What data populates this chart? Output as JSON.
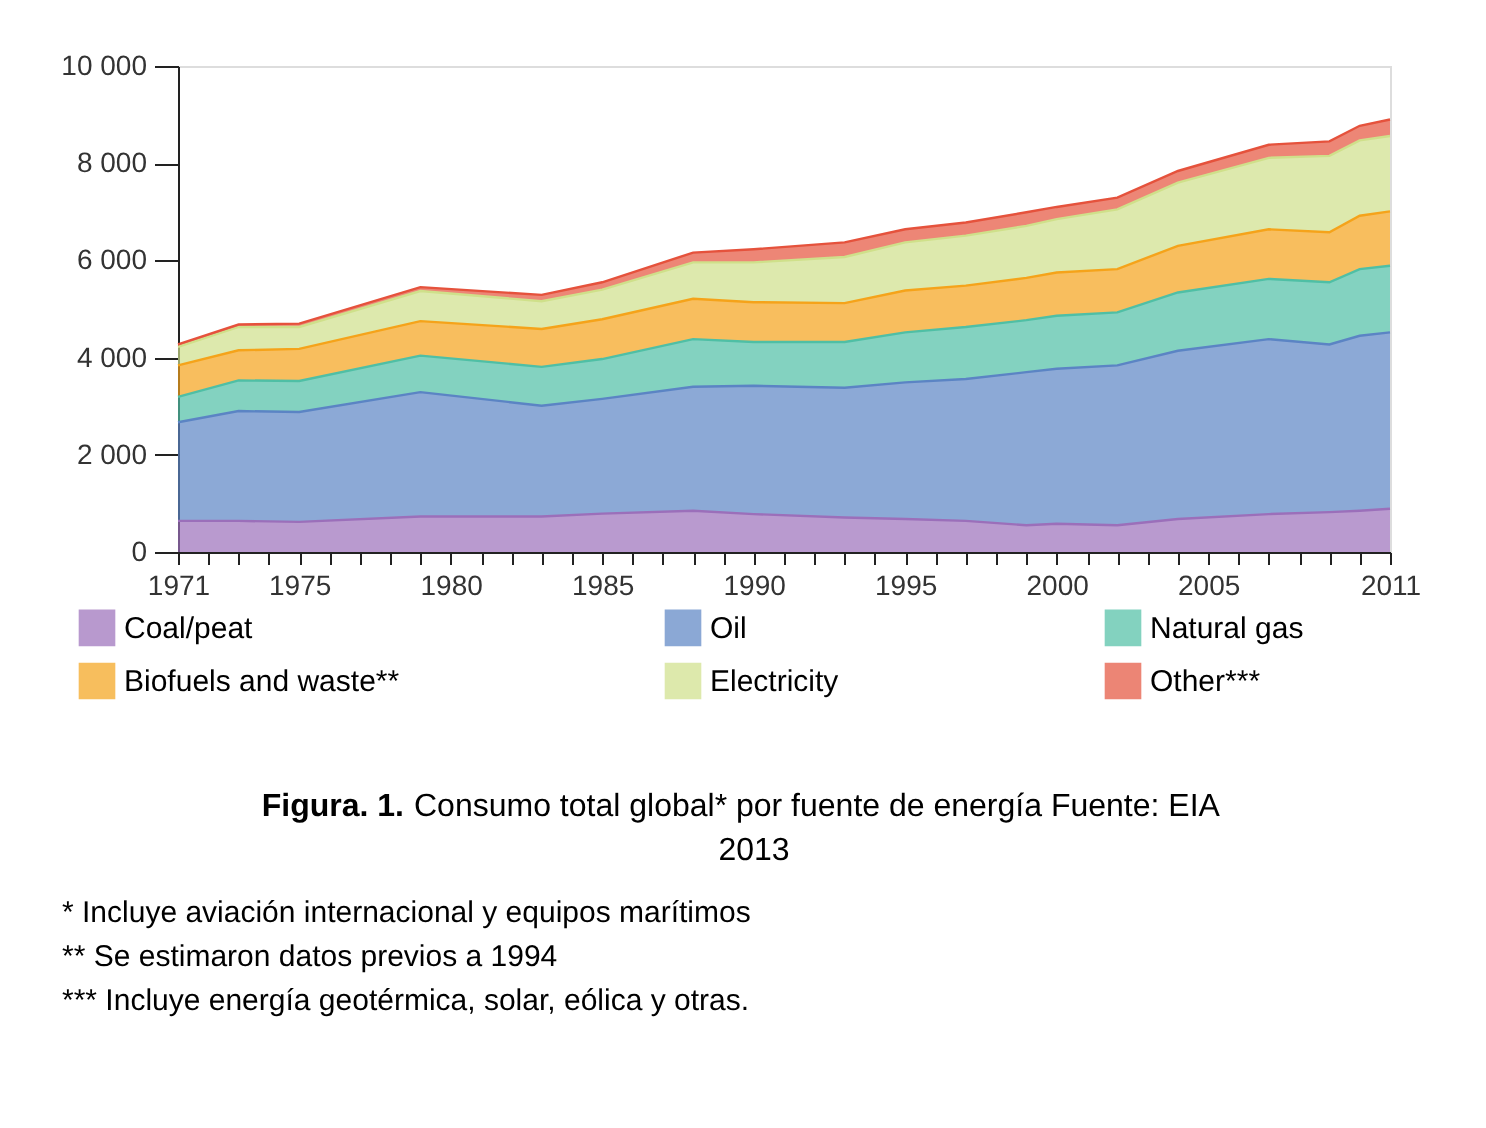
{
  "chart_data": {
    "type": "area",
    "stacked": true,
    "x": [
      1971,
      1973,
      1975,
      1979,
      1983,
      1985,
      1988,
      1990,
      1993,
      1995,
      1997,
      1999,
      2000,
      2002,
      2004,
      2007,
      2009,
      2010,
      2011
    ],
    "series": [
      {
        "name": "Coal/peat",
        "color": "#9b6fba",
        "values": [
          640,
          640,
          620,
          730,
          730,
          790,
          850,
          780,
          710,
          680,
          640,
          550,
          580,
          550,
          680,
          780,
          820,
          850,
          890
        ]
      },
      {
        "name": "Oil",
        "color": "#5b84c4",
        "values": [
          2030,
          2260,
          2260,
          2560,
          2280,
          2360,
          2550,
          2640,
          2670,
          2810,
          2920,
          3150,
          3190,
          3290,
          3460,
          3600,
          3450,
          3600,
          3630
        ]
      },
      {
        "name": "Natural gas",
        "color": "#4fbfa5",
        "values": [
          520,
          630,
          640,
          750,
          800,
          820,
          980,
          900,
          940,
          1030,
          1070,
          1070,
          1090,
          1090,
          1200,
          1240,
          1280,
          1370,
          1370
        ]
      },
      {
        "name": "Biofuels and waste**",
        "color": "#f5a31a",
        "values": [
          650,
          620,
          660,
          710,
          780,
          820,
          830,
          820,
          800,
          860,
          850,
          870,
          890,
          890,
          960,
          1020,
          1030,
          1100,
          1120
        ]
      },
      {
        "name": "Electricity",
        "color": "#cfe08a",
        "values": [
          380,
          480,
          450,
          620,
          570,
          610,
          750,
          820,
          950,
          990,
          1030,
          1070,
          1100,
          1230,
          1300,
          1470,
          1570,
          1550,
          1550
        ]
      },
      {
        "name": "Other***",
        "color": "#e5523c",
        "values": [
          50,
          50,
          70,
          80,
          130,
          150,
          200,
          270,
          300,
          270,
          270,
          280,
          250,
          240,
          240,
          270,
          300,
          300,
          340
        ]
      }
    ],
    "xlim": [
      1971,
      2011
    ],
    "xticks": [
      1971,
      {
        "value": 1972,
        "label": null
      },
      {
        "value": 1973,
        "label": null
      },
      {
        "value": 1974,
        "label": null
      },
      1975,
      {
        "value": 1976,
        "label": null
      },
      {
        "value": 1977,
        "label": null
      },
      {
        "value": 1978,
        "label": null
      },
      {
        "value": 1979,
        "label": null
      },
      1980,
      {
        "value": 1981,
        "label": null
      },
      {
        "value": 1982,
        "label": null
      },
      {
        "value": 1983,
        "label": null
      },
      {
        "value": 1984,
        "label": null
      },
      1985,
      {
        "value": 1986,
        "label": null
      },
      {
        "value": 1987,
        "label": null
      },
      {
        "value": 1988,
        "label": null
      },
      {
        "value": 1989,
        "label": null
      },
      1990,
      {
        "value": 1991,
        "label": null
      },
      {
        "value": 1992,
        "label": null
      },
      {
        "value": 1993,
        "label": null
      },
      {
        "value": 1994,
        "label": null
      },
      1995,
      {
        "value": 1996,
        "label": null
      },
      {
        "value": 1997,
        "label": null
      },
      {
        "value": 1998,
        "label": null
      },
      {
        "value": 1999,
        "label": null
      },
      2000,
      {
        "value": 2001,
        "label": null
      },
      {
        "value": 2002,
        "label": null
      },
      {
        "value": 2003,
        "label": null
      },
      {
        "value": 2004,
        "label": null
      },
      2005,
      {
        "value": 2006,
        "label": null
      },
      {
        "value": 2007,
        "label": null
      },
      {
        "value": 2008,
        "label": null
      },
      {
        "value": 2009,
        "label": null
      },
      {
        "value": 2010,
        "label": null
      },
      2011
    ],
    "ylim": [
      0,
      10000
    ],
    "yticks": [
      0,
      {
        "value": 2000,
        "label": "2 000"
      },
      {
        "value": 4000,
        "label": "4 000"
      },
      {
        "value": 6000,
        "label": "6 000"
      },
      {
        "value": 8000,
        "label": "8 000"
      },
      {
        "value": 10000,
        "label": "10 000"
      }
    ],
    "grid": false,
    "legend": "bottom",
    "annotations": [
      "Figura. 1.",
      "Consumo total global* por fuente de energía Fuente: EIA 2013",
      "* Incluye aviación internacional y equipos marítimos",
      "** Se estimaron datos previos a 1994",
      "*** Incluye energía geotérmica, solar, eólica y otras."
    ]
  }
}
